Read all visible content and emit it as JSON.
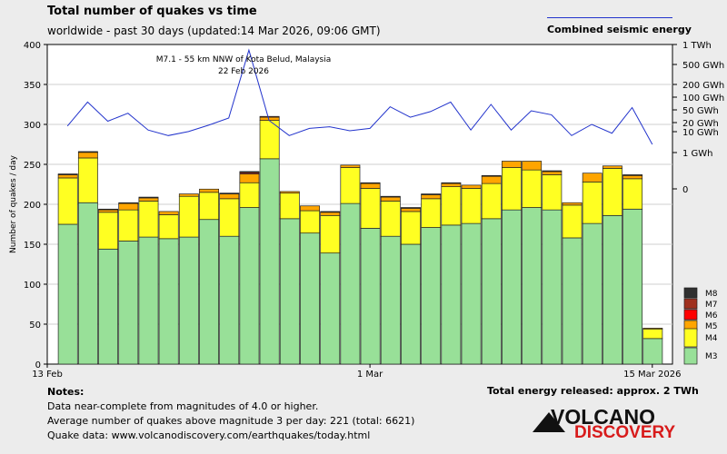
{
  "title": "Total number of quakes vs time",
  "subtitle": "worldwide - past 30 days (updated:14 Mar 2026, 09:06 GMT)",
  "energy_legend_label": "Combined seismic energy",
  "notes": {
    "heading": "Notes:",
    "line1": "Data near-complete from magnitudes of 4.0 or higher.",
    "line2": "Average number of quakes above magnitude 3 per day: 221 (total: 6621)",
    "line3": "Quake data: www.volcanodiscovery.com/earthquakes/today.html"
  },
  "total_energy": "Total energy released: approx. 2 TWh",
  "logo": {
    "word1": "VOLCANO",
    "word2": "DISCOVERY"
  },
  "colors": {
    "M3": "#98e098",
    "M4": "#ffff22",
    "M5": "#ffa500",
    "M6": "#ff0000",
    "M7": "#a0301e",
    "M8": "#303030",
    "energy_line": "#2233cc"
  },
  "chart_data": {
    "type": "bar",
    "stacked": true,
    "ylabel": "Number of quakes / day",
    "ylim": [
      0,
      400
    ],
    "yticks": [
      0,
      50,
      100,
      150,
      200,
      250,
      300,
      350,
      400
    ],
    "xtick_labels": [
      {
        "day": 0,
        "label": "13 Feb"
      },
      {
        "day": 16,
        "label": "1 Mar"
      },
      {
        "day": 30,
        "label": "15 Mar 2026"
      }
    ],
    "legend": [
      "M8",
      "M7",
      "M6",
      "M5",
      "M4",
      "M3"
    ],
    "days": [
      {
        "M3": 175,
        "M4": 58,
        "M5": 4,
        "M6": 0,
        "M7": 0,
        "M8": 1
      },
      {
        "M3": 202,
        "M4": 56,
        "M5": 7,
        "M6": 0,
        "M7": 0,
        "M8": 1
      },
      {
        "M3": 144,
        "M4": 46,
        "M5": 3,
        "M6": 0,
        "M7": 0,
        "M8": 1
      },
      {
        "M3": 154,
        "M4": 39,
        "M5": 8,
        "M6": 0,
        "M7": 0,
        "M8": 1
      },
      {
        "M3": 159,
        "M4": 45,
        "M5": 4,
        "M6": 0,
        "M7": 0,
        "M8": 1
      },
      {
        "M3": 157,
        "M4": 30,
        "M5": 4,
        "M6": 0,
        "M7": 0,
        "M8": 0
      },
      {
        "M3": 159,
        "M4": 51,
        "M5": 3,
        "M6": 0,
        "M7": 0,
        "M8": 0
      },
      {
        "M3": 181,
        "M4": 34,
        "M5": 4,
        "M6": 0,
        "M7": 0,
        "M8": 0
      },
      {
        "M3": 160,
        "M4": 47,
        "M5": 6,
        "M6": 0,
        "M7": 0,
        "M8": 1
      },
      {
        "M3": 196,
        "M4": 31,
        "M5": 11,
        "M6": 0,
        "M7": 2,
        "M8": 1
      },
      {
        "M3": 257,
        "M4": 48,
        "M5": 4,
        "M6": 0,
        "M7": 1,
        "M8": 0
      },
      {
        "M3": 182,
        "M4": 32,
        "M5": 2,
        "M6": 0,
        "M7": 0,
        "M8": 0
      },
      {
        "M3": 164,
        "M4": 28,
        "M5": 6,
        "M6": 0,
        "M7": 0,
        "M8": 0
      },
      {
        "M3": 139,
        "M4": 47,
        "M5": 4,
        "M6": 0,
        "M7": 0,
        "M8": 1
      },
      {
        "M3": 201,
        "M4": 45,
        "M5": 3,
        "M6": 0,
        "M7": 0,
        "M8": 0
      },
      {
        "M3": 170,
        "M4": 50,
        "M5": 6,
        "M6": 0,
        "M7": 0,
        "M8": 1
      },
      {
        "M3": 160,
        "M4": 44,
        "M5": 5,
        "M6": 0,
        "M7": 0,
        "M8": 1
      },
      {
        "M3": 150,
        "M4": 41,
        "M5": 4,
        "M6": 0,
        "M7": 0,
        "M8": 1
      },
      {
        "M3": 171,
        "M4": 36,
        "M5": 5,
        "M6": 0,
        "M7": 0,
        "M8": 1
      },
      {
        "M3": 174,
        "M4": 48,
        "M5": 4,
        "M6": 0,
        "M7": 0,
        "M8": 1
      },
      {
        "M3": 176,
        "M4": 44,
        "M5": 4,
        "M6": 0,
        "M7": 0,
        "M8": 0
      },
      {
        "M3": 182,
        "M4": 44,
        "M5": 9,
        "M6": 0,
        "M7": 0,
        "M8": 1
      },
      {
        "M3": 193,
        "M4": 53,
        "M5": 8,
        "M6": 0,
        "M7": 0,
        "M8": 0
      },
      {
        "M3": 196,
        "M4": 47,
        "M5": 11,
        "M6": 0,
        "M7": 0,
        "M8": 0
      },
      {
        "M3": 193,
        "M4": 44,
        "M5": 4,
        "M6": 0,
        "M7": 0,
        "M8": 1
      },
      {
        "M3": 158,
        "M4": 41,
        "M5": 3,
        "M6": 0,
        "M7": 0,
        "M8": 0
      },
      {
        "M3": 176,
        "M4": 52,
        "M5": 11,
        "M6": 0,
        "M7": 0,
        "M8": 0
      },
      {
        "M3": 186,
        "M4": 59,
        "M5": 3,
        "M6": 0,
        "M7": 0,
        "M8": 0
      },
      {
        "M3": 194,
        "M4": 38,
        "M5": 4,
        "M6": 0,
        "M7": 0,
        "M8": 1
      },
      {
        "M3": 32,
        "M4": 12,
        "M5": 1,
        "M6": 0,
        "M7": 0,
        "M8": 0
      }
    ],
    "energy_axis_labels": [
      "1 TWh",
      "500 GWh",
      "200 GWh",
      "100 GWh",
      "50 GWh",
      "20 GWh",
      "10 GWh",
      "1 GWh",
      "0"
    ],
    "energy_series_y": [
      298,
      328,
      304,
      314,
      293,
      286,
      291,
      299,
      308,
      393,
      305,
      286,
      295,
      297,
      292,
      295,
      322,
      309,
      316,
      328,
      293,
      325,
      293,
      317,
      312,
      286,
      300,
      289,
      321,
      275
    ],
    "annotation": {
      "line1": "M7.1 - 55 km NNW of Kota Belud, Malaysia",
      "line2": "22 Feb 2026"
    }
  }
}
